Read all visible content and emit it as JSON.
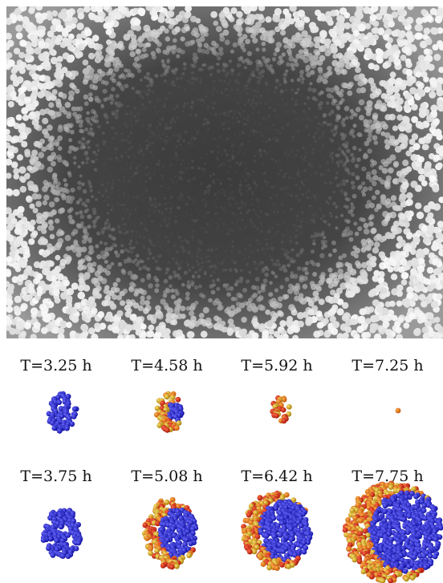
{
  "rows": [
    [
      "T=3.25 h",
      "T=4.58 h",
      "T=5.92 h",
      "T=7.25 h"
    ],
    [
      "T=3.75 h",
      "T=5.08 h",
      "T=6.42 h",
      "T=7.75 h"
    ]
  ]
}
